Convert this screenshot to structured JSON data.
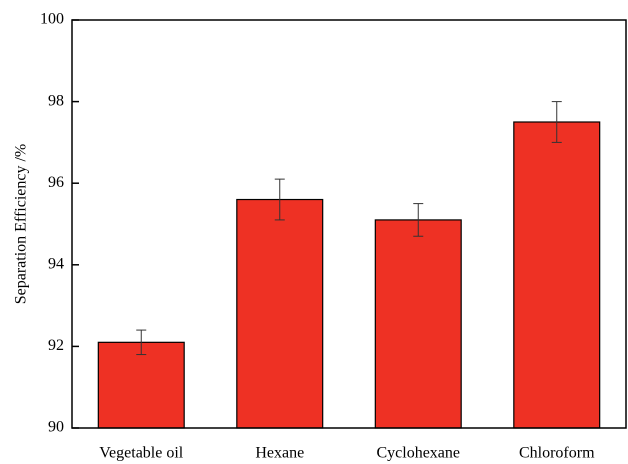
{
  "chart_data": {
    "type": "bar",
    "ylabel": "Separation Efficiency /%",
    "categories": [
      "Vegetable oil",
      "Hexane",
      "Cyclohexane",
      "Chloroform"
    ],
    "values": [
      92.1,
      95.6,
      95.1,
      97.5
    ],
    "errors": [
      0.3,
      0.5,
      0.4,
      0.5
    ],
    "color": "#ee3124",
    "ylim": [
      90,
      100
    ],
    "yticks": [
      90,
      92,
      94,
      96,
      98,
      100
    ],
    "grid": false
  }
}
